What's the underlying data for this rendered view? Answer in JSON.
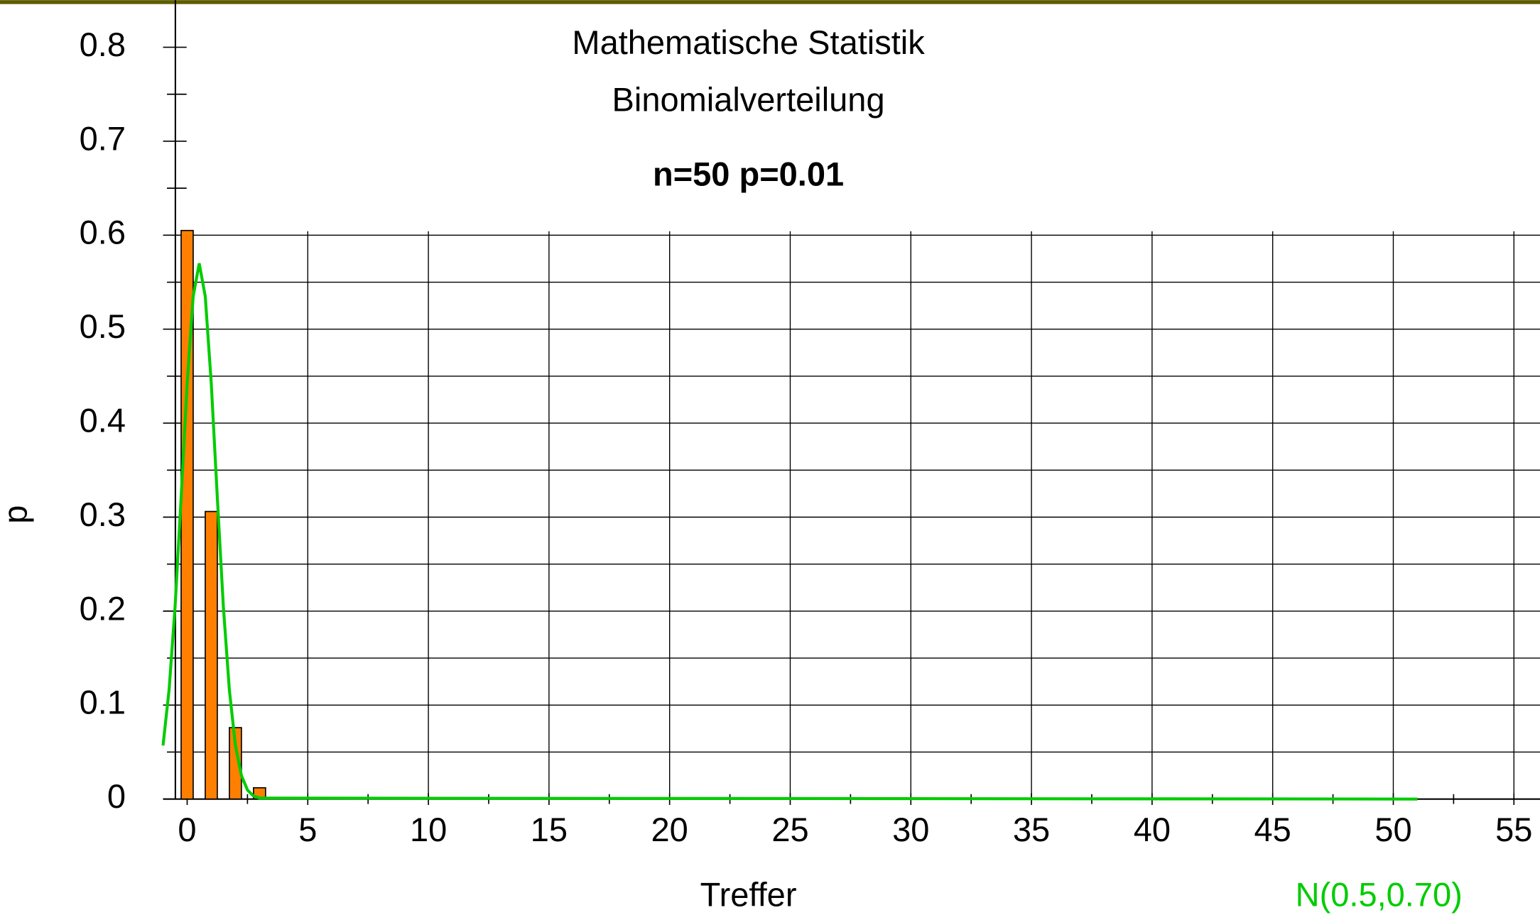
{
  "chart_data": {
    "type": "bar",
    "title": "Mathematische Statistik",
    "subtitle": "Binomialverteilung",
    "annotation": "n=50 p=0.01",
    "x_label": "Treffer",
    "y_label": "p",
    "x": [
      0,
      1,
      2,
      3,
      4
    ],
    "values": [
      0.605,
      0.306,
      0.076,
      0.012,
      0.0015
    ],
    "color": "#ff8000",
    "curve": {
      "type": "line",
      "name": "N(0.5,0.70)",
      "color": "#00cc00",
      "x": [
        -1,
        -0.75,
        -0.5,
        -0.25,
        0,
        0.25,
        0.5,
        0.75,
        1,
        1.25,
        1.5,
        1.75,
        2,
        2.25,
        2.5,
        2.75,
        3,
        51
      ],
      "values": [
        0.057,
        0.116,
        0.205,
        0.321,
        0.442,
        0.535,
        0.57,
        0.535,
        0.442,
        0.321,
        0.205,
        0.116,
        0.057,
        0.025,
        0.0096,
        0.0033,
        0.001,
        0
      ]
    },
    "xlim": [
      -1,
      56
    ],
    "ylim": [
      0,
      0.8
    ],
    "xticks": [
      0,
      5,
      10,
      15,
      20,
      25,
      30,
      35,
      40,
      45,
      50,
      55
    ],
    "xminorticks": [
      2.5,
      7.5,
      12.5,
      17.5,
      22.5,
      27.5,
      32.5,
      37.5,
      42.5,
      47.5,
      52.5
    ],
    "yticks": [
      0,
      0.1,
      0.2,
      0.3,
      0.4,
      0.5,
      0.6,
      0.7,
      0.8
    ],
    "yminorticks": [
      0.05,
      0.15,
      0.25,
      0.35,
      0.45,
      0.55,
      0.65,
      0.75
    ],
    "grid": true,
    "grid_ylim": [
      0,
      0.6
    ]
  }
}
